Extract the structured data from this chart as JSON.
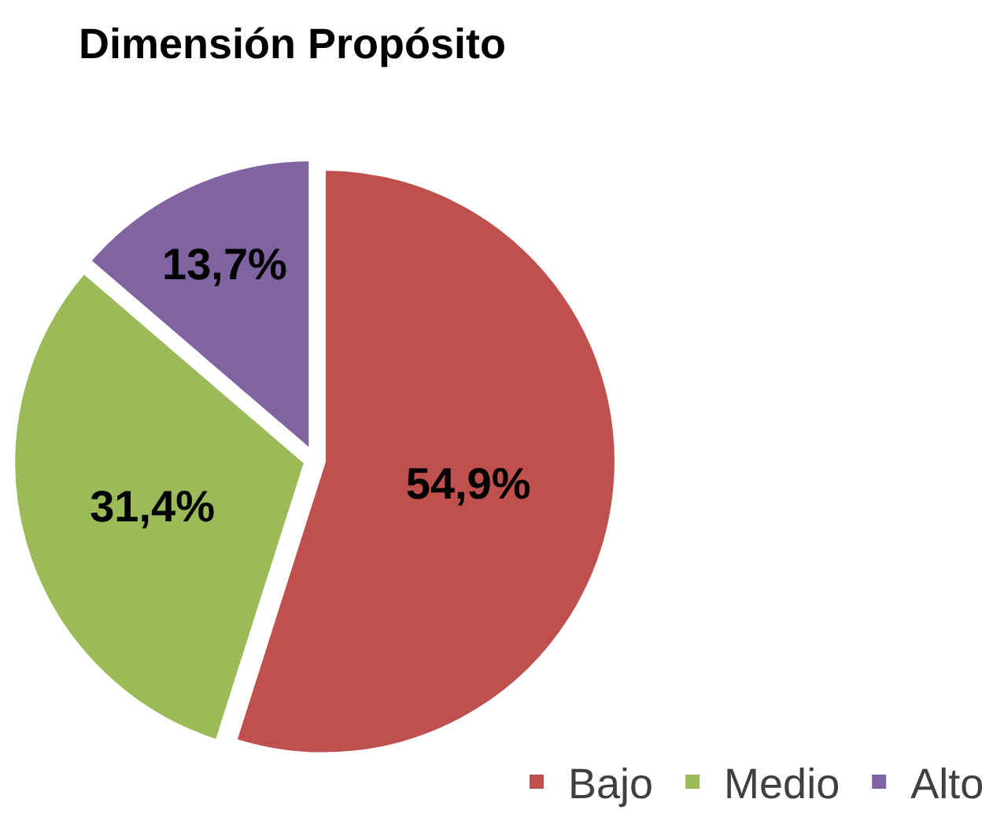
{
  "chart_data": {
    "type": "pie",
    "title": "Dimensión Propósito",
    "categories": [
      "Bajo",
      "Medio",
      "Alto"
    ],
    "values": [
      54.9,
      31.4,
      13.7
    ],
    "colors": [
      "#c0504d",
      "#9bbb59",
      "#8064a2"
    ],
    "value_labels": [
      "54,9%",
      "31,4%",
      "13,7%"
    ],
    "legend": "bottom right"
  }
}
